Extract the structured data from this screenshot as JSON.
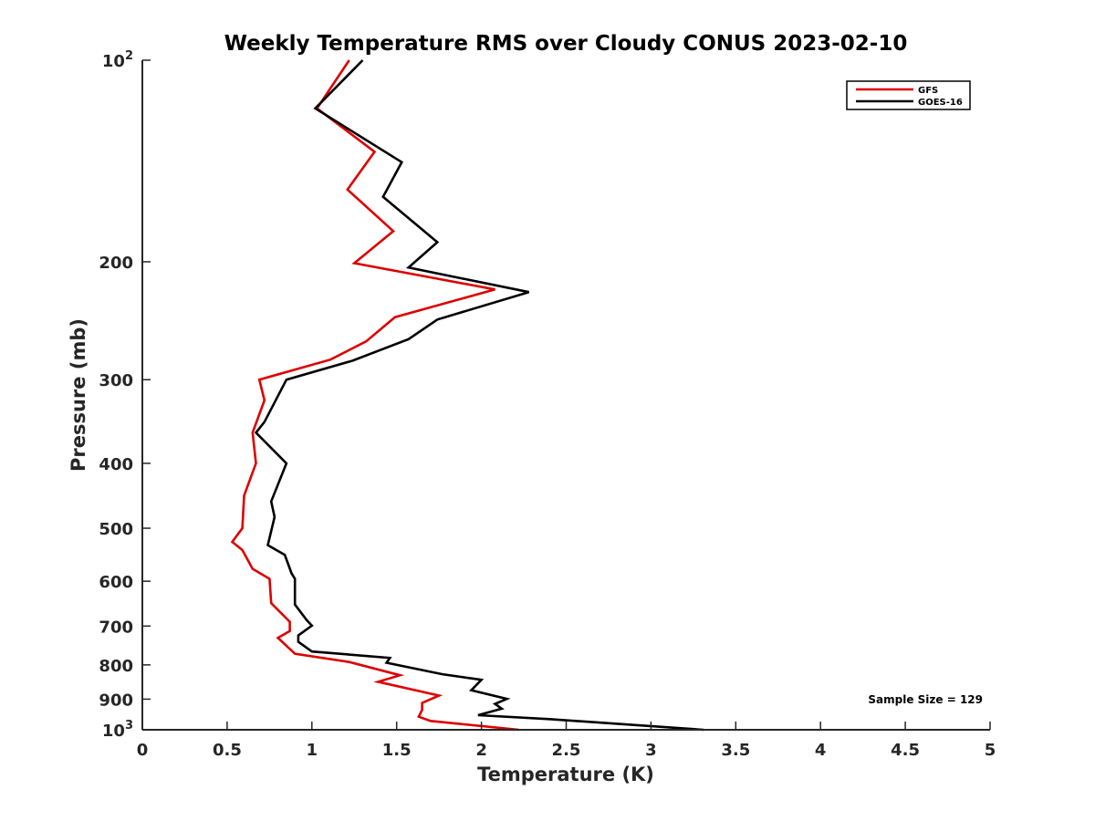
{
  "chart_data": {
    "type": "line",
    "title": "Weekly Temperature RMS over Cloudy CONUS 2023-02-10",
    "xlabel": "Temperature (K)",
    "ylabel": "Pressure (mb)",
    "xlim": [
      0,
      5
    ],
    "ylim": [
      100,
      1000
    ],
    "y_scale": "log",
    "y_reversed": true,
    "grid": false,
    "legend_position": "top-right",
    "x_ticks": [
      "0",
      "0.5",
      "1",
      "1.5",
      "2",
      "2.5",
      "3",
      "3.5",
      "4",
      "4.5",
      "5"
    ],
    "y_ticks": [
      {
        "value": 100,
        "base": "10",
        "exp": "2"
      },
      {
        "value": 200,
        "label": "200"
      },
      {
        "value": 300,
        "label": "300"
      },
      {
        "value": 400,
        "label": "400"
      },
      {
        "value": 500,
        "label": "500"
      },
      {
        "value": 600,
        "label": "600"
      },
      {
        "value": 700,
        "label": "700"
      },
      {
        "value": 800,
        "label": "800"
      },
      {
        "value": 900,
        "label": "900"
      },
      {
        "value": 1000,
        "base": "10",
        "exp": "3"
      }
    ],
    "annotation": "Sample Size = 129",
    "series": [
      {
        "name": "GFS",
        "color": "#dd0000",
        "points": [
          [
            1.22,
            100
          ],
          [
            1.03,
            118
          ],
          [
            1.37,
            137
          ],
          [
            1.21,
            156
          ],
          [
            1.48,
            180
          ],
          [
            1.25,
            201
          ],
          [
            2.08,
            220
          ],
          [
            1.49,
            242
          ],
          [
            1.32,
            263
          ],
          [
            1.11,
            280
          ],
          [
            0.69,
            300
          ],
          [
            0.72,
            322
          ],
          [
            0.65,
            360
          ],
          [
            0.67,
            400
          ],
          [
            0.6,
            447
          ],
          [
            0.59,
            500
          ],
          [
            0.53,
            524
          ],
          [
            0.59,
            539
          ],
          [
            0.65,
            575
          ],
          [
            0.75,
            595
          ],
          [
            0.76,
            647
          ],
          [
            0.87,
            690
          ],
          [
            0.87,
            712
          ],
          [
            0.8,
            729
          ],
          [
            0.9,
            770
          ],
          [
            1.22,
            792
          ],
          [
            1.52,
            829
          ],
          [
            1.39,
            848
          ],
          [
            1.75,
            889
          ],
          [
            1.65,
            912
          ],
          [
            1.65,
            934
          ],
          [
            1.63,
            956
          ],
          [
            1.7,
            970
          ],
          [
            2.22,
            1000
          ]
        ]
      },
      {
        "name": "GOES-16",
        "color": "#000000",
        "points": [
          [
            1.3,
            100
          ],
          [
            1.02,
            118
          ],
          [
            1.53,
            142
          ],
          [
            1.42,
            160
          ],
          [
            1.74,
            187
          ],
          [
            1.57,
            204
          ],
          [
            2.28,
            222
          ],
          [
            1.74,
            244
          ],
          [
            1.57,
            261
          ],
          [
            1.24,
            281
          ],
          [
            0.85,
            300
          ],
          [
            0.72,
            347
          ],
          [
            0.67,
            360
          ],
          [
            0.85,
            400
          ],
          [
            0.76,
            456
          ],
          [
            0.78,
            481
          ],
          [
            0.74,
            530
          ],
          [
            0.84,
            548
          ],
          [
            0.88,
            584
          ],
          [
            0.9,
            595
          ],
          [
            0.9,
            650
          ],
          [
            0.97,
            686
          ],
          [
            1.0,
            699
          ],
          [
            0.92,
            723
          ],
          [
            0.92,
            739
          ],
          [
            1.0,
            764
          ],
          [
            1.46,
            781
          ],
          [
            1.44,
            794
          ],
          [
            1.77,
            826
          ],
          [
            2.0,
            842
          ],
          [
            1.94,
            873
          ],
          [
            2.15,
            899
          ],
          [
            2.08,
            915
          ],
          [
            2.12,
            930
          ],
          [
            1.98,
            951
          ],
          [
            2.4,
            964
          ],
          [
            3.31,
            1000
          ]
        ]
      }
    ]
  }
}
